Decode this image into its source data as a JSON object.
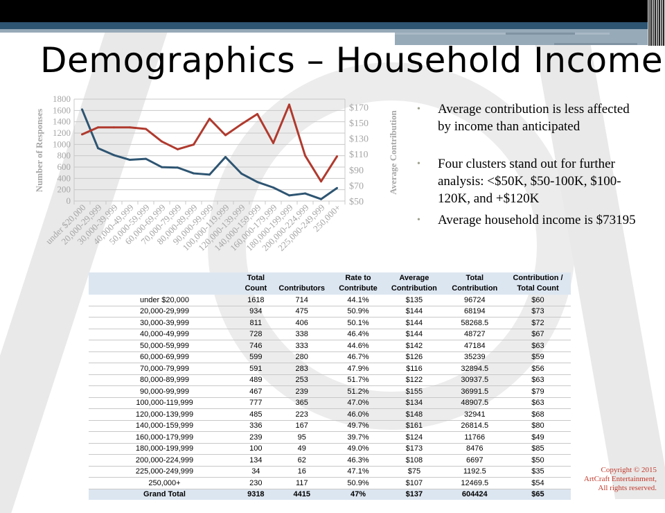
{
  "slide": {
    "title": "Demographics – Household Income",
    "copyright": [
      "Copyright © 2015",
      "ArtCraft Entertainment,",
      "All rights reserved."
    ]
  },
  "bullets": [
    "Average contribution is less affected by income than anticipated",
    "Four clusters stand out for further analysis: <$50K, $50-100K, $100-120K, and +$120K",
    "Average household income is $73195"
  ],
  "chart_data": {
    "type": "line",
    "categories": [
      "under $20,000",
      "20,000-29,999",
      "30,000-39,999",
      "40,000-49,999",
      "50,000-59,999",
      "60,000-69,999",
      "70,000-79,999",
      "80,000-89,999",
      "90,000-99,999",
      "100,000-119,999",
      "120,000-139,999",
      "140,000-159,999",
      "160,000-179,999",
      "180,000-199,999",
      "200,000-224,999",
      "225,000-249,999",
      "250,000+"
    ],
    "series": [
      {
        "axis": "left",
        "color": "#2e5572",
        "values": [
          1618,
          934,
          811,
          728,
          746,
          599,
          591,
          489,
          467,
          777,
          485,
          336,
          239,
          100,
          134,
          34,
          230
        ]
      },
      {
        "axis": "right",
        "color": "#b03a2e",
        "values": [
          135,
          144,
          144,
          144,
          142,
          126,
          116,
          122,
          155,
          134,
          148,
          161,
          124,
          173,
          108,
          75,
          107
        ]
      }
    ],
    "ylabel": "Number of Responses",
    "y2label": "Average Contribution",
    "ylim": [
      0,
      1800
    ],
    "yticks": [
      "0",
      "200",
      "400",
      "600",
      "800",
      "1000",
      "1200",
      "1400",
      "1600",
      "1800"
    ],
    "y2lim": [
      50,
      180
    ],
    "y2ticks": [
      "$50",
      "$70",
      "$90",
      "$110",
      "$130",
      "$150",
      "$170"
    ],
    "grid": true
  },
  "table": {
    "headers": [
      [
        "",
        ""
      ],
      [
        "Total",
        "Count"
      ],
      [
        "",
        "Contributors"
      ],
      [
        "Rate to",
        "Contribute"
      ],
      [
        "Average",
        "Contribution"
      ],
      [
        "Total",
        "Contribution"
      ],
      [
        "Contribution /",
        "Total Count"
      ]
    ],
    "rows": [
      [
        "under $20,000",
        "1618",
        "714",
        "44.1%",
        "$135",
        "96724",
        "$60"
      ],
      [
        "20,000-29,999",
        "934",
        "475",
        "50.9%",
        "$144",
        "68194",
        "$73"
      ],
      [
        "30,000-39,999",
        "811",
        "406",
        "50.1%",
        "$144",
        "58268.5",
        "$72"
      ],
      [
        "40,000-49,999",
        "728",
        "338",
        "46.4%",
        "$144",
        "48727",
        "$67"
      ],
      [
        "50,000-59,999",
        "746",
        "333",
        "44.6%",
        "$142",
        "47184",
        "$63"
      ],
      [
        "60,000-69,999",
        "599",
        "280",
        "46.7%",
        "$126",
        "35239",
        "$59"
      ],
      [
        "70,000-79,999",
        "591",
        "283",
        "47.9%",
        "$116",
        "32894.5",
        "$56"
      ],
      [
        "80,000-89,999",
        "489",
        "253",
        "51.7%",
        "$122",
        "30937.5",
        "$63"
      ],
      [
        "90,000-99,999",
        "467",
        "239",
        "51.2%",
        "$155",
        "36991.5",
        "$79"
      ],
      [
        "100,000-119,999",
        "777",
        "365",
        "47.0%",
        "$134",
        "48907.5",
        "$63"
      ],
      [
        "120,000-139,999",
        "485",
        "223",
        "46.0%",
        "$148",
        "32941",
        "$68"
      ],
      [
        "140,000-159,999",
        "336",
        "167",
        "49.7%",
        "$161",
        "26814.5",
        "$80"
      ],
      [
        "160,000-179,999",
        "239",
        "95",
        "39.7%",
        "$124",
        "11766",
        "$49"
      ],
      [
        "180,000-199,999",
        "100",
        "49",
        "49.0%",
        "$173",
        "8476",
        "$85"
      ],
      [
        "200,000-224,999",
        "134",
        "62",
        "46.3%",
        "$108",
        "6697",
        "$50"
      ],
      [
        "225,000-249,999",
        "34",
        "16",
        "47.1%",
        "$75",
        "1192.5",
        "$35"
      ],
      [
        "250,000+",
        "230",
        "117",
        "50.9%",
        "$107",
        "12469.5",
        "$54"
      ]
    ],
    "total": [
      "Grand Total",
      "9318",
      "4415",
      "47%",
      "$137",
      "604424",
      "$65"
    ]
  }
}
